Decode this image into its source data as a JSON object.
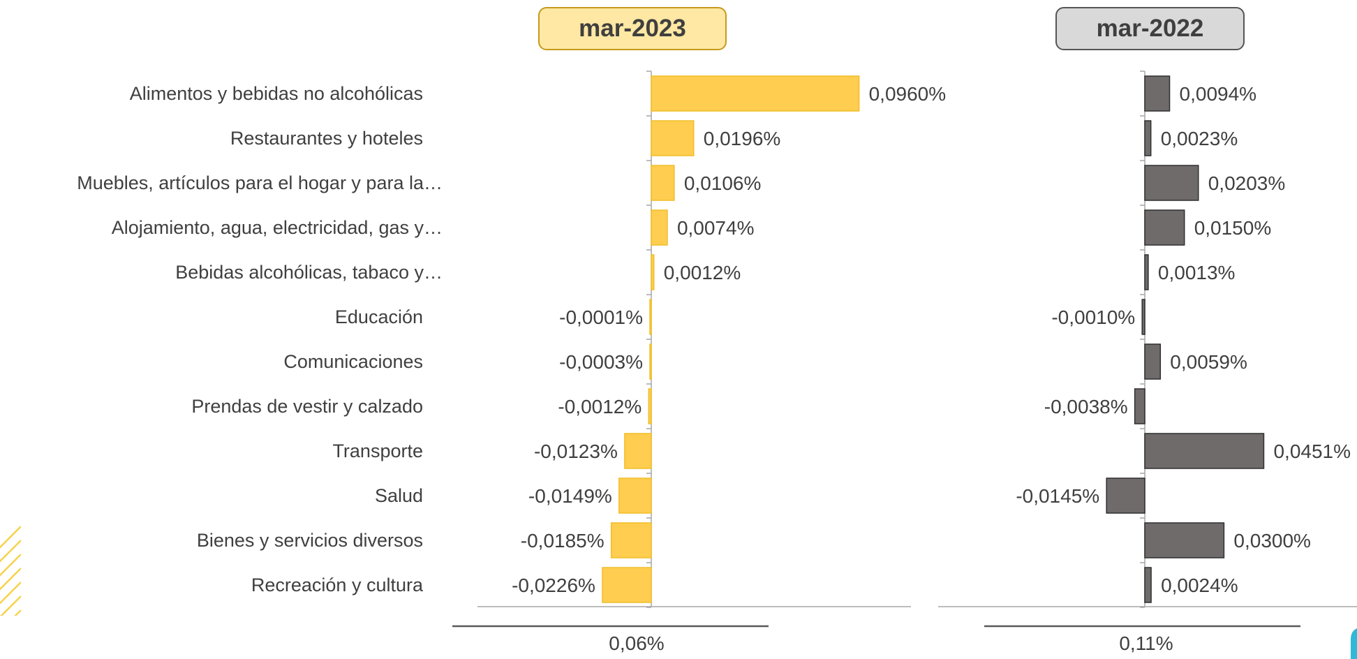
{
  "colors": {
    "yellow_bar": "#FFCD4F",
    "yellow_bar_border": "#F0BE2A",
    "yellow_header_bg": "#FFE8A3",
    "yellow_header_border": "#C49A1E",
    "gray_bar": "#706B6B",
    "gray_bar_border": "#2F2F2F",
    "gray_header_bg": "#D9D9D9",
    "gray_header_border": "#555555",
    "axis": "#A6A6A6",
    "text": "#3F3F3F",
    "stripe": "#F7D24A",
    "corner_accent": "#2FB8D8"
  },
  "chart_data": [
    {
      "type": "bar",
      "orientation": "horizontal",
      "title": "mar-2023",
      "categories": [
        "Alimentos y bebidas no alcohólicas",
        "Restaurantes y hoteles",
        "Muebles, artículos para el hogar y para la…",
        "Alojamiento, agua, electricidad, gas y…",
        "Bebidas alcohólicas, tabaco y…",
        "Educación",
        "Comunicaciones",
        "Prendas de vestir y calzado",
        "Transporte",
        "Salud",
        "Bienes y servicios diversos",
        "Recreación y cultura"
      ],
      "values": [
        0.096,
        0.0196,
        0.0106,
        0.0074,
        0.0012,
        -0.0001,
        -0.0003,
        -0.0012,
        -0.0123,
        -0.0149,
        -0.0185,
        -0.0226
      ],
      "data_labels": [
        "0,0960%",
        "0,0196%",
        "0,0106%",
        "0,0074%",
        "0,0012%",
        "-0,0001%",
        "-0,0003%",
        "-0,0012%",
        "-0,0123%",
        "-0,0149%",
        "-0,0185%",
        "-0,0226%"
      ],
      "unit": "%",
      "total_label": "0,06%",
      "grid": false
    },
    {
      "type": "bar",
      "orientation": "horizontal",
      "title": "mar-2022",
      "categories": [
        "Alimentos y bebidas no alcohólicas",
        "Restaurantes y hoteles",
        "Muebles, artículos para el hogar y para la…",
        "Alojamiento, agua, electricidad, gas y…",
        "Bebidas alcohólicas, tabaco y…",
        "Educación",
        "Comunicaciones",
        "Prendas de vestir y calzado",
        "Transporte",
        "Salud",
        "Bienes y servicios diversos",
        "Recreación y cultura"
      ],
      "values": [
        0.0094,
        0.0023,
        0.0203,
        0.015,
        0.0013,
        -0.001,
        0.0059,
        -0.0038,
        0.0451,
        -0.0145,
        0.03,
        0.0024
      ],
      "data_labels": [
        "0,0094%",
        "0,0023%",
        "0,0203%",
        "0,0150%",
        "0,0013%",
        "-0,0010%",
        "0,0059%",
        "-0,0038%",
        "0,0451%",
        "-0,0145%",
        "0,0300%",
        "0,0024%"
      ],
      "unit": "%",
      "total_label": "0,11%",
      "grid": false
    }
  ]
}
